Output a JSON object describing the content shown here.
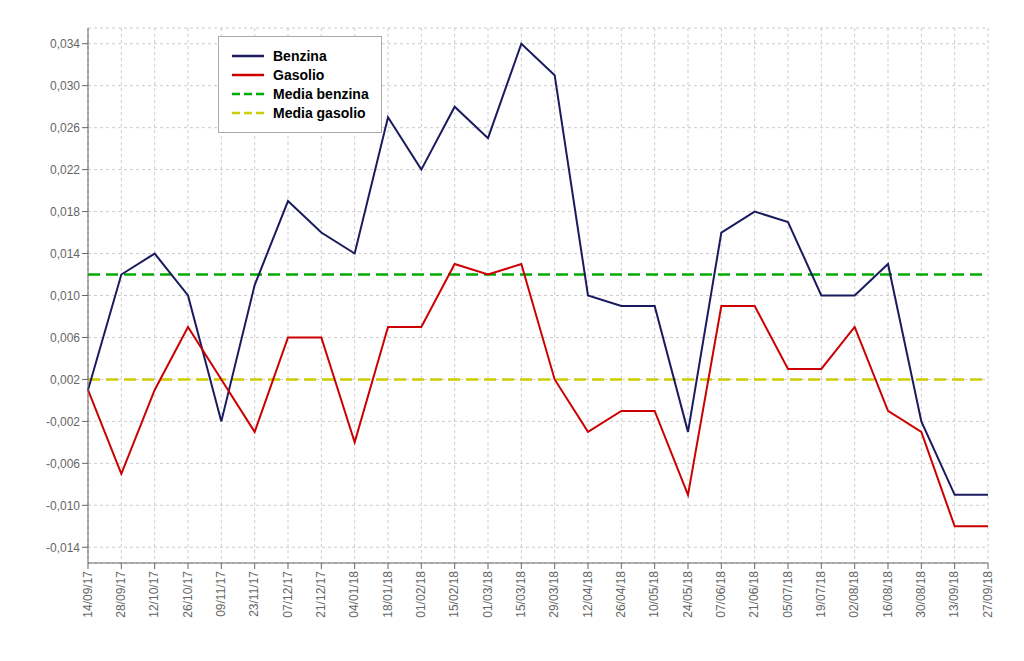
{
  "chart_data": {
    "type": "line",
    "categories": [
      "14/09/17",
      "28/09/17",
      "12/10/17",
      "26/10/17",
      "09/11/17",
      "23/11/17",
      "07/12/17",
      "21/12/17",
      "04/01/18",
      "18/01/18",
      "01/02/18",
      "15/02/18",
      "01/03/18",
      "15/03/18",
      "29/03/18",
      "12/04/18",
      "26/04/18",
      "10/05/18",
      "24/05/18",
      "07/06/18",
      "21/06/18",
      "05/07/18",
      "19/07/18",
      "02/08/18",
      "16/08/18",
      "30/08/18",
      "13/09/18",
      "27/09/18"
    ],
    "series": [
      {
        "name": "Benzina",
        "type": "line",
        "color": "#1a1a5e",
        "values": [
          0.001,
          0.012,
          0.014,
          0.01,
          -0.002,
          0.011,
          0.019,
          0.016,
          0.014,
          0.027,
          0.022,
          0.028,
          0.025,
          0.034,
          0.031,
          0.01,
          0.009,
          0.009,
          -0.003,
          0.016,
          0.018,
          0.017,
          0.01,
          0.01,
          0.013,
          -0.002,
          -0.009,
          -0.009
        ]
      },
      {
        "name": "Gasolio",
        "type": "line",
        "color": "#cc0000",
        "values": [
          0.001,
          -0.007,
          0.001,
          0.007,
          0.002,
          -0.003,
          0.006,
          0.006,
          -0.004,
          0.007,
          0.007,
          0.013,
          0.012,
          0.013,
          0.002,
          -0.003,
          -0.001,
          -0.001,
          -0.009,
          0.009,
          0.009,
          0.003,
          0.003,
          0.007,
          -0.001,
          -0.003,
          -0.012,
          -0.012
        ]
      },
      {
        "name": "Media benzina",
        "type": "hline",
        "color": "#00aa00",
        "line_style": "dashed",
        "value": 0.012
      },
      {
        "name": "Media gasolio",
        "type": "hline",
        "color": "#cccc00",
        "line_style": "dashed",
        "value": 0.002
      }
    ],
    "ylim": [
      -0.0155,
      0.0355
    ],
    "yticks": [
      {
        "value": -0.014,
        "label": "-0,014"
      },
      {
        "value": -0.01,
        "label": "-0,010"
      },
      {
        "value": -0.006,
        "label": "-0,006"
      },
      {
        "value": -0.002,
        "label": "-0,002"
      },
      {
        "value": 0.002,
        "label": "0,002"
      },
      {
        "value": 0.006,
        "label": "0,006"
      },
      {
        "value": 0.01,
        "label": "0,010"
      },
      {
        "value": 0.014,
        "label": "0,014"
      },
      {
        "value": 0.018,
        "label": "0,018"
      },
      {
        "value": 0.022,
        "label": "0,022"
      },
      {
        "value": 0.026,
        "label": "0,026"
      },
      {
        "value": 0.03,
        "label": "0,030"
      },
      {
        "value": 0.034,
        "label": "0,034"
      }
    ],
    "grid": true,
    "legend": "upper left"
  }
}
